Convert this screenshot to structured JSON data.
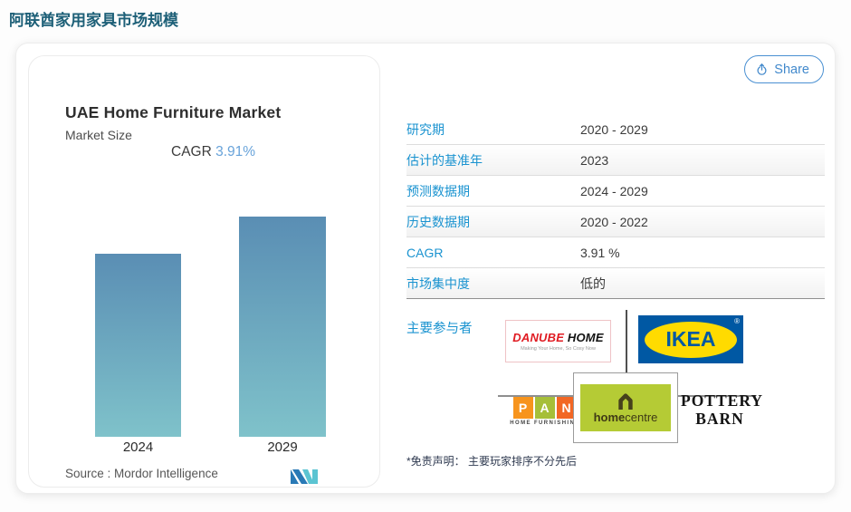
{
  "page": {
    "title": "阿联酋家用家具市场规模"
  },
  "share": {
    "label": "Share"
  },
  "chart": {
    "title": "UAE Home Furniture Market",
    "subtitle": "Market Size",
    "cagr_label": "CAGR",
    "cagr_value": "3.91%",
    "source": "Source :  Mordor Intelligence"
  },
  "chart_data": {
    "type": "bar",
    "title": "UAE Home Furniture Market",
    "subtitle": "Market Size",
    "cagr": "3.91%",
    "categories": [
      "2024",
      "2029"
    ],
    "values_relative": [
      0.83,
      1.0
    ],
    "value_labels_shown": false,
    "bar_gradient_top": "#5a8eb4",
    "bar_gradient_bottom": "#7fc2ca",
    "legend": "none",
    "grid": false
  },
  "facts": {
    "rows": [
      {
        "label": "研究期",
        "value": "2020 - 2029"
      },
      {
        "label": "估计的基准年",
        "value": "2023"
      },
      {
        "label": "预测数据期",
        "value": "2024 - 2029"
      },
      {
        "label": "历史数据期",
        "value": "2020 - 2022"
      },
      {
        "label": "CAGR",
        "value": "3.91 %"
      },
      {
        "label": "市场集中度",
        "value": "低的"
      }
    ]
  },
  "players": {
    "label": "主要参与者",
    "names": [
      "Danube Home",
      "IKEA",
      "PAN Home Furnishings",
      "Home Centre",
      "Pottery Barn"
    ],
    "danube": {
      "word_red": "DANUBE",
      "word_black": " HOME",
      "tagline": "Making Your Home, So Cosy Now"
    },
    "ikea": {
      "text": "IKEA",
      "reg": "®"
    },
    "pan": {
      "letters": [
        "P",
        "A",
        "N"
      ],
      "sub": "HOME FURNISHINGS"
    },
    "homecentre": {
      "bold": "home",
      "rest": "centre"
    },
    "pottery": {
      "line1": "POTTERY",
      "line2": "BARN"
    }
  },
  "disclaimer": "*免责声明： 主要玩家排序不分先后",
  "colors": {
    "page_title": "#1e6078",
    "label_blue": "#1a93d0",
    "cagr_blue": "#68a3da",
    "share_blue": "#4a90d2",
    "ikea_blue": "#0058a3",
    "ikea_yellow": "#ffdb00",
    "danube_red": "#e01b22",
    "homecentre_green": "#b5cb35"
  }
}
